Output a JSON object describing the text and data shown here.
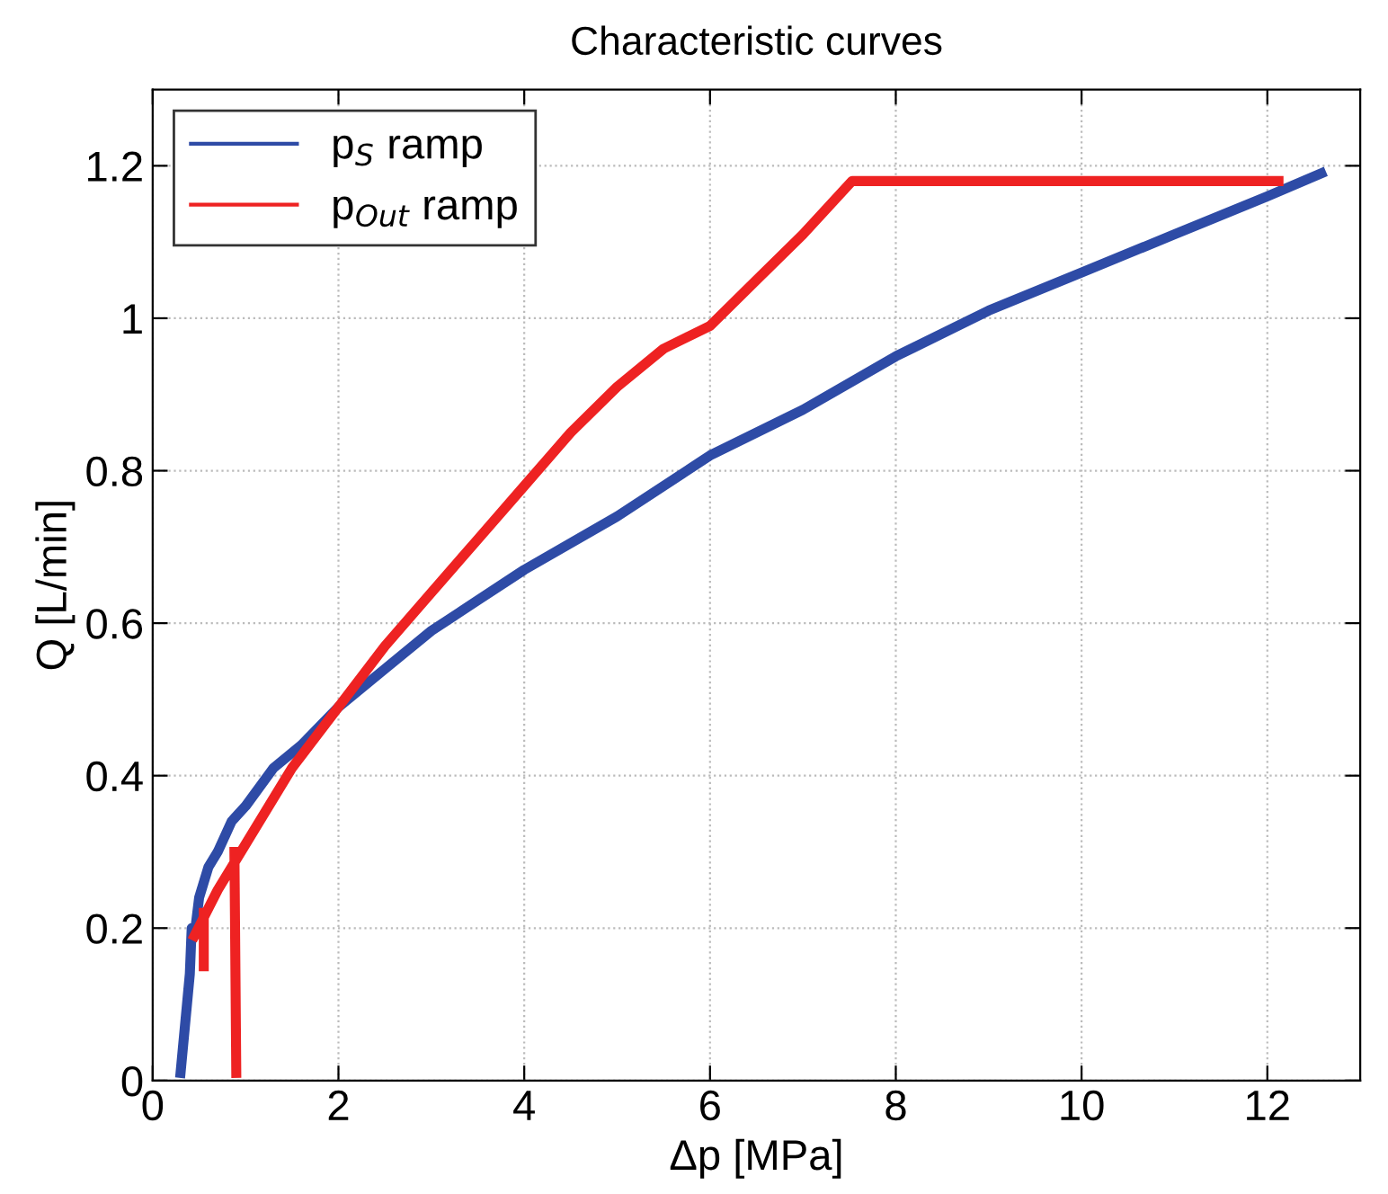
{
  "chart_data": {
    "type": "line",
    "title": "Characteristic curves",
    "xlabel": "Δp [MPa]",
    "ylabel": "Q [L/min]",
    "xlim": [
      0,
      13
    ],
    "xticks": [
      0,
      2,
      4,
      6,
      8,
      10,
      12
    ],
    "ylim": [
      0,
      1.3
    ],
    "yticks": [
      0,
      0.2,
      0.4,
      0.6,
      0.8,
      1,
      {
        "value": 1.2,
        "label": "1.2"
      }
    ],
    "grid": true,
    "legend": "top left",
    "line_style": "solid",
    "marker": "none",
    "series": [
      {
        "name": "p$_{S}$ ramp",
        "color": "#2e4ba6",
        "x": [
          0.3,
          0.4,
          0.42,
          0.45,
          0.5,
          0.6,
          0.7,
          0.85,
          1.0,
          1.3,
          1.6,
          2,
          2.5,
          3,
          3.5,
          4,
          5,
          6,
          7,
          8,
          9,
          10,
          11,
          12,
          12.58
        ],
        "values": [
          0.01,
          0.14,
          0.2,
          0.19,
          0.24,
          0.28,
          0.3,
          0.34,
          0.36,
          0.41,
          0.44,
          0.49,
          0.54,
          0.59,
          0.63,
          0.67,
          0.74,
          0.82,
          0.88,
          0.95,
          1.01,
          1.06,
          1.11,
          1.16,
          1.19
        ]
      },
      {
        "name": "p$_{Out}$ ramp",
        "color": "#ee2222",
        "x": [
          0.9,
          0.88,
          null,
          0.55,
          0.55,
          null,
          0.45,
          0.7,
          1,
          1.5,
          2,
          2.5,
          3,
          3.5,
          4,
          4.5,
          5,
          5.5,
          6,
          6.5,
          7,
          7.53,
          8,
          9,
          10,
          11,
          12.12
        ],
        "values": [
          0.01,
          0.3,
          null,
          0.15,
          0.22,
          null,
          0.19,
          0.25,
          0.31,
          0.41,
          0.49,
          0.57,
          0.64,
          0.71,
          0.78,
          0.85,
          0.91,
          0.96,
          0.99,
          1.05,
          1.11,
          1.18,
          1.18,
          1.18,
          1.18,
          1.18,
          1.18
        ]
      }
    ]
  }
}
